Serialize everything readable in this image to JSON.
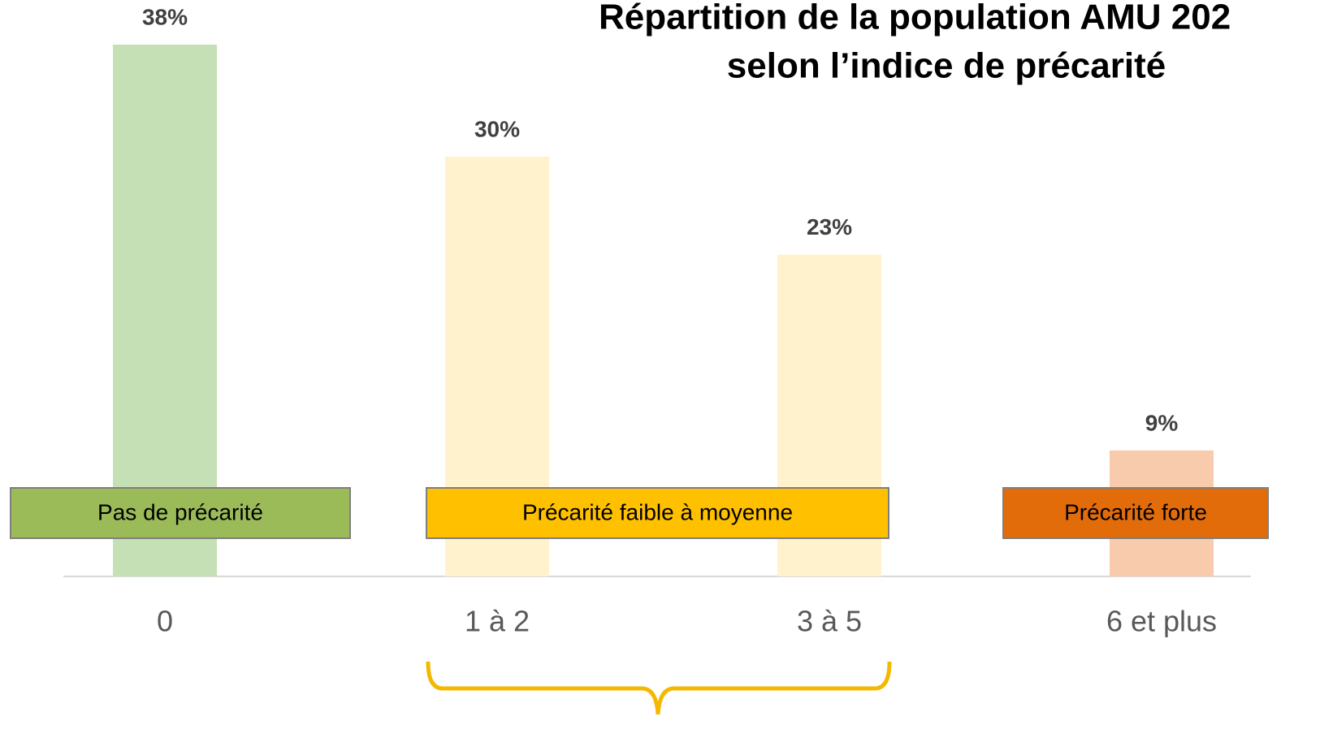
{
  "chart_data": {
    "type": "bar",
    "title": [
      "Répartition de la population AMU 202",
      "selon l’indice de précarité"
    ],
    "categories": [
      "0",
      "1 à 2",
      "3 à 5",
      "6 et plus"
    ],
    "values": [
      38,
      30,
      23,
      9
    ],
    "value_labels": [
      "38%",
      "30%",
      "23%",
      "9%"
    ],
    "colors": [
      "#c5e0b4",
      "#fff2cc",
      "#fff2cc",
      "#f8cbad"
    ],
    "annotations": [
      {
        "text": "Pas de précarité",
        "color": "#9bbb59"
      },
      {
        "text": "Précarité faible à moyenne",
        "color": "#ffc000"
      },
      {
        "text": "Précarité forte",
        "color": "#e36c0a"
      }
    ],
    "grid": false
  }
}
